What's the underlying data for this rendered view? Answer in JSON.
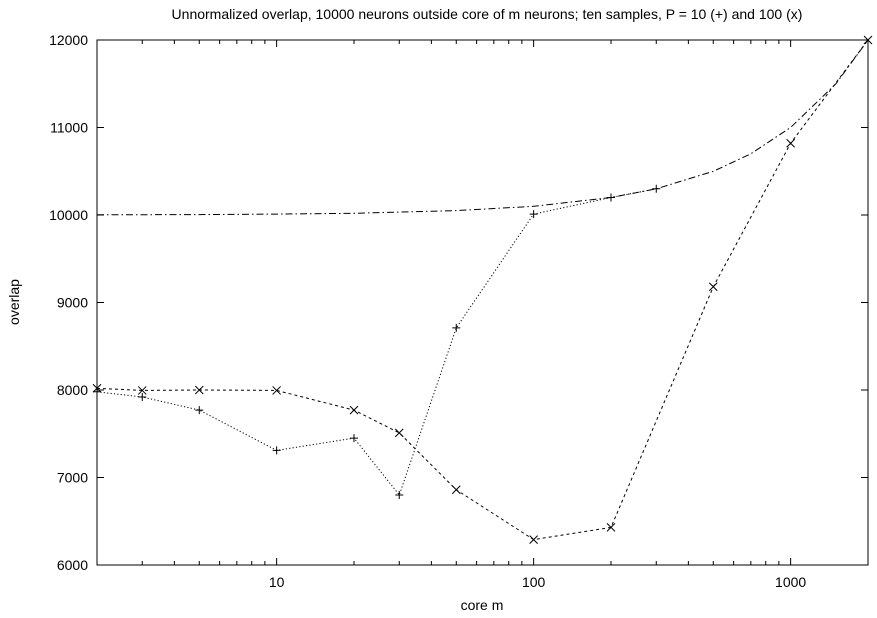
{
  "chart_data": {
    "type": "line",
    "title": "Unnormalized overlap, 10000 neurons outside core of m neurons; ten samples, P = 10 (+) and 100 (x)",
    "xlabel": "core m",
    "ylabel": "overlap",
    "xscale": "log",
    "xlim": [
      2,
      2000
    ],
    "ylim": [
      6000,
      12000
    ],
    "x_ticks": [
      10,
      100,
      1000
    ],
    "x_tick_labels": [
      "10",
      "100",
      "1000"
    ],
    "y_ticks": [
      6000,
      7000,
      8000,
      9000,
      10000,
      11000,
      12000
    ],
    "y_tick_labels": [
      "6000",
      "7000",
      "8000",
      "9000",
      "10000",
      "11000",
      "12000"
    ],
    "grid": false,
    "legend": "none",
    "series": [
      {
        "marker": "+",
        "line_style": "dotted",
        "points": [
          {
            "x": 2,
            "y": 7980
          },
          {
            "x": 3,
            "y": 7920
          },
          {
            "x": 5,
            "y": 7770
          },
          {
            "x": 10,
            "y": 7310
          },
          {
            "x": 20,
            "y": 7450
          },
          {
            "x": 30,
            "y": 6800
          },
          {
            "x": 50,
            "y": 8710
          },
          {
            "x": 100,
            "y": 10010
          },
          {
            "x": 200,
            "y": 10200
          },
          {
            "x": 300,
            "y": 10300
          }
        ]
      },
      {
        "marker": "x",
        "line_style": "dashed",
        "points": [
          {
            "x": 2,
            "y": 8020
          },
          {
            "x": 3,
            "y": 7995
          },
          {
            "x": 5,
            "y": 8000
          },
          {
            "x": 10,
            "y": 7995
          },
          {
            "x": 20,
            "y": 7770
          },
          {
            "x": 30,
            "y": 7510
          },
          {
            "x": 50,
            "y": 6860
          },
          {
            "x": 100,
            "y": 6290
          },
          {
            "x": 200,
            "y": 6430
          },
          {
            "x": 500,
            "y": 9180
          },
          {
            "x": 1000,
            "y": 10820
          },
          {
            "x": 2000,
            "y": 12000
          }
        ]
      },
      {
        "line_style": "dash-dot",
        "function": "10000 + m",
        "points": [
          {
            "x": 2,
            "y": 10002
          },
          {
            "x": 5,
            "y": 10005
          },
          {
            "x": 10,
            "y": 10010
          },
          {
            "x": 20,
            "y": 10020
          },
          {
            "x": 50,
            "y": 10050
          },
          {
            "x": 100,
            "y": 10100
          },
          {
            "x": 200,
            "y": 10200
          },
          {
            "x": 300,
            "y": 10300
          },
          {
            "x": 500,
            "y": 10500
          },
          {
            "x": 700,
            "y": 10700
          },
          {
            "x": 1000,
            "y": 11000
          },
          {
            "x": 1500,
            "y": 11500
          },
          {
            "x": 2000,
            "y": 12000
          }
        ]
      }
    ]
  }
}
